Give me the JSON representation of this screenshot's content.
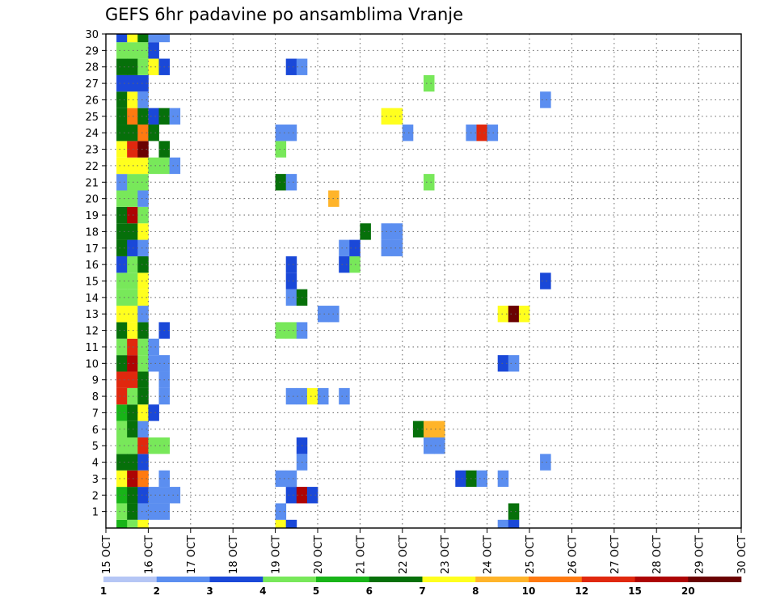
{
  "chart_data": {
    "type": "heatmap",
    "title": "GEFS 6hr padavine po ansamblima Vranje",
    "x_tick_labels": [
      "15 OCT",
      "16 OCT",
      "17 OCT",
      "18 OCT",
      "19 OCT",
      "20 OCT",
      "21 OCT",
      "22 OCT",
      "23 OCT",
      "24 OCT",
      "25 OCT",
      "26 OCT",
      "27 OCT",
      "28 OCT",
      "29 OCT",
      "30 OCT"
    ],
    "y_tick_labels": [
      "1",
      "2",
      "3",
      "4",
      "5",
      "6",
      "7",
      "8",
      "9",
      "10",
      "11",
      "12",
      "13",
      "14",
      "15",
      "16",
      "17",
      "18",
      "19",
      "20",
      "21",
      "22",
      "23",
      "24",
      "25",
      "26",
      "27",
      "28",
      "29",
      "30"
    ],
    "grid": "dotted",
    "legend": {
      "placement": "bottom",
      "labels": [
        "1",
        "2",
        "3",
        "4",
        "5",
        "6",
        "7",
        "8",
        "10",
        "12",
        "15",
        "20"
      ],
      "colors": [
        "#b5c6f5",
        "#5b8ef0",
        "#1a48d8",
        "#78e85a",
        "#18b418",
        "#06700a",
        "#ffff1e",
        "#ffb42a",
        "#ff7a10",
        "#e0280e",
        "#ad0404",
        "#6a0202"
      ]
    },
    "cell_format": "[lead_step_6h, member, level]",
    "cells": [
      [
        1,
        0,
        4
      ],
      [
        1,
        1,
        3
      ],
      [
        1,
        2,
        4
      ],
      [
        1,
        3,
        6
      ],
      [
        1,
        4,
        5
      ],
      [
        1,
        5,
        3
      ],
      [
        1,
        6,
        3
      ],
      [
        1,
        7,
        4
      ],
      [
        1,
        8,
        9
      ],
      [
        1,
        9,
        9
      ],
      [
        1,
        10,
        5
      ],
      [
        1,
        11,
        3
      ],
      [
        1,
        12,
        5
      ],
      [
        1,
        13,
        6
      ],
      [
        1,
        14,
        3
      ],
      [
        1,
        15,
        3
      ],
      [
        1,
        16,
        2
      ],
      [
        1,
        17,
        5
      ],
      [
        1,
        18,
        5
      ],
      [
        1,
        19,
        5
      ],
      [
        1,
        20,
        3
      ],
      [
        1,
        21,
        1
      ],
      [
        1,
        22,
        6
      ],
      [
        1,
        23,
        6
      ],
      [
        1,
        24,
        5
      ],
      [
        1,
        25,
        5
      ],
      [
        1,
        26,
        5
      ],
      [
        1,
        27,
        2
      ],
      [
        1,
        28,
        5
      ],
      [
        1,
        29,
        3
      ],
      [
        1,
        30,
        2
      ],
      [
        2,
        0,
        3
      ],
      [
        2,
        1,
        5
      ],
      [
        2,
        2,
        5
      ],
      [
        2,
        3,
        10
      ],
      [
        2,
        4,
        5
      ],
      [
        2,
        5,
        3
      ],
      [
        2,
        6,
        5
      ],
      [
        2,
        7,
        5
      ],
      [
        2,
        8,
        3
      ],
      [
        2,
        9,
        9
      ],
      [
        2,
        10,
        10
      ],
      [
        2,
        11,
        9
      ],
      [
        2,
        12,
        6
      ],
      [
        2,
        13,
        6
      ],
      [
        2,
        14,
        3
      ],
      [
        2,
        15,
        3
      ],
      [
        2,
        16,
        3
      ],
      [
        2,
        17,
        2
      ],
      [
        2,
        18,
        5
      ],
      [
        2,
        19,
        10
      ],
      [
        2,
        20,
        3
      ],
      [
        2,
        21,
        3
      ],
      [
        2,
        22,
        6
      ],
      [
        2,
        23,
        9
      ],
      [
        2,
        24,
        5
      ],
      [
        2,
        25,
        8
      ],
      [
        2,
        26,
        6
      ],
      [
        2,
        27,
        2
      ],
      [
        2,
        28,
        5
      ],
      [
        2,
        29,
        3
      ],
      [
        2,
        30,
        6
      ],
      [
        3,
        0,
        6
      ],
      [
        3,
        1,
        1
      ],
      [
        3,
        2,
        2
      ],
      [
        3,
        3,
        8
      ],
      [
        3,
        4,
        2
      ],
      [
        3,
        5,
        9
      ],
      [
        3,
        6,
        1
      ],
      [
        3,
        7,
        6
      ],
      [
        3,
        8,
        5
      ],
      [
        3,
        9,
        5
      ],
      [
        3,
        10,
        3
      ],
      [
        3,
        11,
        3
      ],
      [
        3,
        12,
        5
      ],
      [
        3,
        13,
        1
      ],
      [
        3,
        14,
        6
      ],
      [
        3,
        15,
        6
      ],
      [
        3,
        16,
        5
      ],
      [
        3,
        17,
        1
      ],
      [
        3,
        18,
        6
      ],
      [
        3,
        19,
        3
      ],
      [
        3,
        20,
        1
      ],
      [
        3,
        21,
        3
      ],
      [
        3,
        22,
        6
      ],
      [
        3,
        23,
        11
      ],
      [
        3,
        24,
        8
      ],
      [
        3,
        25,
        5
      ],
      [
        3,
        26,
        1
      ],
      [
        3,
        27,
        2
      ],
      [
        3,
        28,
        3
      ],
      [
        3,
        29,
        3
      ],
      [
        3,
        30,
        5
      ],
      [
        4,
        1,
        1
      ],
      [
        4,
        2,
        1
      ],
      [
        4,
        5,
        3
      ],
      [
        4,
        7,
        2
      ],
      [
        4,
        10,
        1
      ],
      [
        4,
        11,
        1
      ],
      [
        4,
        22,
        3
      ],
      [
        4,
        24,
        5
      ],
      [
        4,
        25,
        2
      ],
      [
        4,
        28,
        6
      ],
      [
        4,
        29,
        2
      ],
      [
        4,
        30,
        1
      ],
      [
        5,
        1,
        1
      ],
      [
        5,
        2,
        1
      ],
      [
        5,
        3,
        1
      ],
      [
        5,
        5,
        3
      ],
      [
        5,
        8,
        1
      ],
      [
        5,
        9,
        1
      ],
      [
        5,
        10,
        1
      ],
      [
        5,
        12,
        2
      ],
      [
        5,
        22,
        3
      ],
      [
        5,
        23,
        5
      ],
      [
        5,
        25,
        5
      ],
      [
        5,
        28,
        2
      ],
      [
        5,
        30,
        1
      ],
      [
        6,
        2,
        1
      ],
      [
        6,
        22,
        1
      ],
      [
        6,
        25,
        1
      ],
      [
        16,
        0,
        6
      ],
      [
        16,
        1,
        1
      ],
      [
        16,
        3,
        1
      ],
      [
        16,
        12,
        3
      ],
      [
        16,
        21,
        5
      ],
      [
        16,
        23,
        3
      ],
      [
        16,
        24,
        1
      ],
      [
        17,
        0,
        2
      ],
      [
        17,
        2,
        2
      ],
      [
        17,
        3,
        1
      ],
      [
        17,
        8,
        1
      ],
      [
        17,
        12,
        3
      ],
      [
        17,
        14,
        1
      ],
      [
        17,
        15,
        2
      ],
      [
        17,
        16,
        2
      ],
      [
        17,
        21,
        1
      ],
      [
        17,
        24,
        1
      ],
      [
        17,
        28,
        2
      ],
      [
        18,
        2,
        10
      ],
      [
        18,
        4,
        1
      ],
      [
        18,
        5,
        2
      ],
      [
        18,
        8,
        1
      ],
      [
        18,
        12,
        1
      ],
      [
        18,
        14,
        5
      ],
      [
        18,
        28,
        1
      ],
      [
        19,
        2,
        2
      ],
      [
        19,
        8,
        6
      ],
      [
        20,
        8,
        1
      ],
      [
        20,
        13,
        1
      ],
      [
        21,
        13,
        1
      ],
      [
        21,
        20,
        7
      ],
      [
        22,
        8,
        1
      ],
      [
        22,
        16,
        2
      ],
      [
        22,
        17,
        1
      ],
      [
        23,
        16,
        3
      ],
      [
        23,
        17,
        2
      ],
      [
        24,
        18,
        5
      ],
      [
        26,
        25,
        6
      ],
      [
        26,
        18,
        1
      ],
      [
        26,
        17,
        1
      ],
      [
        27,
        25,
        6
      ],
      [
        27,
        18,
        1
      ],
      [
        27,
        17,
        1
      ],
      [
        28,
        24,
        1
      ],
      [
        29,
        6,
        5
      ],
      [
        30,
        6,
        7
      ],
      [
        30,
        5,
        1
      ],
      [
        30,
        27,
        3
      ],
      [
        30,
        21,
        3
      ],
      [
        31,
        6,
        7
      ],
      [
        31,
        5,
        1
      ],
      [
        33,
        3,
        2
      ],
      [
        34,
        3,
        5
      ],
      [
        34,
        24,
        1
      ],
      [
        35,
        3,
        1
      ],
      [
        35,
        24,
        9
      ],
      [
        36,
        24,
        1
      ],
      [
        37,
        0,
        1
      ],
      [
        37,
        10,
        2
      ],
      [
        37,
        3,
        1
      ],
      [
        37,
        13,
        6
      ],
      [
        38,
        0,
        2
      ],
      [
        38,
        1,
        5
      ],
      [
        38,
        10,
        1
      ],
      [
        38,
        13,
        11
      ],
      [
        39,
        13,
        6
      ],
      [
        41,
        4,
        1
      ],
      [
        41,
        15,
        2
      ],
      [
        41,
        26,
        1
      ]
    ]
  }
}
